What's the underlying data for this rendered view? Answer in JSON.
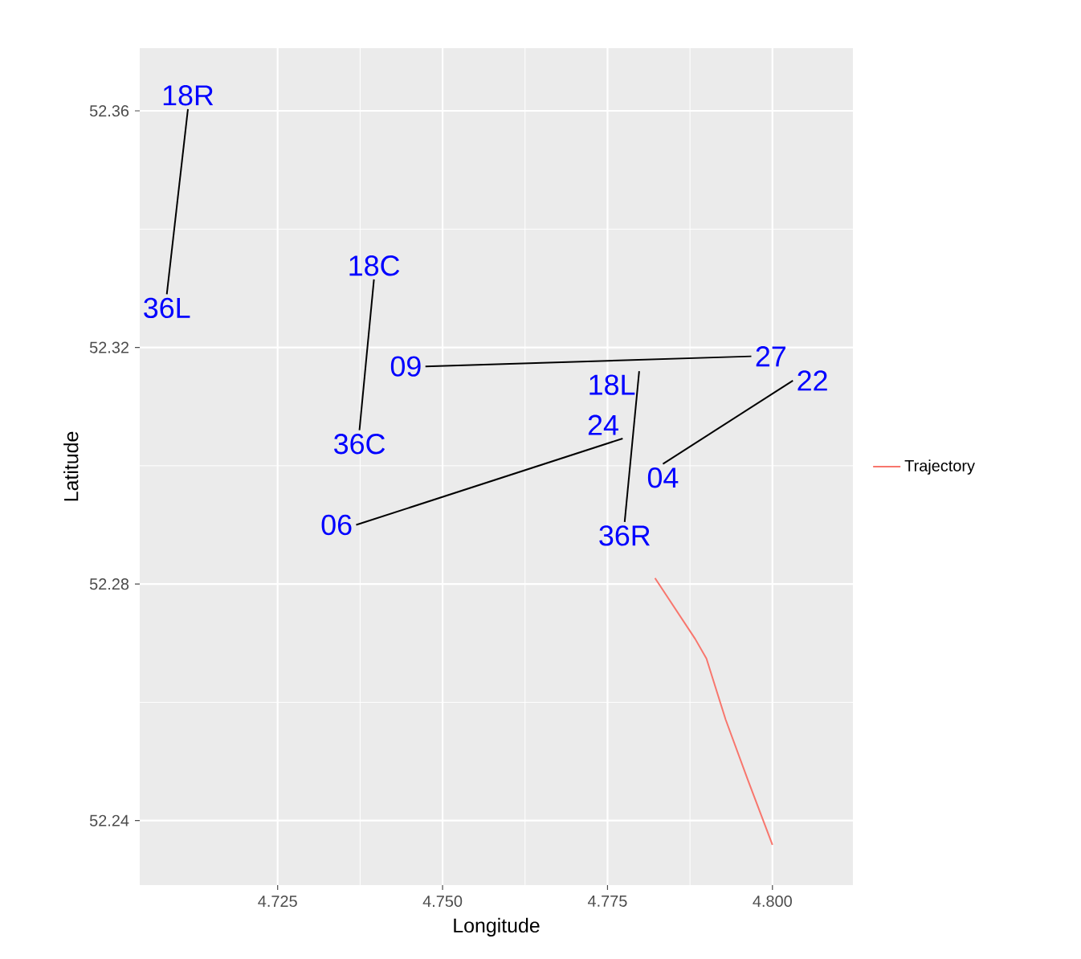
{
  "chart_data": {
    "type": "line",
    "xlabel": "Longitude",
    "ylabel": "Latitude",
    "xlim": [
      4.7041,
      4.8122
    ],
    "ylim": [
      52.2291,
      52.3706
    ],
    "xticks": [
      4.725,
      {
        "value": 4.75,
        "label": "4.750"
      },
      4.775,
      {
        "value": 4.8,
        "label": "4.800"
      }
    ],
    "yticks": [
      52.24,
      52.28,
      52.32,
      52.36
    ],
    "grid": true,
    "legend": "right",
    "series": [
      {
        "color": "#000000",
        "x": [
          4.7114,
          4.7082
        ],
        "values": [
          52.3603,
          52.329
        ]
      },
      {
        "color": "#000000",
        "x": [
          4.7396,
          4.7374
        ],
        "values": [
          52.3315,
          52.306
        ]
      },
      {
        "color": "#000000",
        "x": [
          4.7474,
          4.7968
        ],
        "values": [
          52.3168,
          52.3185
        ]
      },
      {
        "color": "#000000",
        "x": [
          4.7369,
          4.7773
        ],
        "values": [
          52.29,
          52.3046
        ]
      },
      {
        "color": "#000000",
        "x": [
          4.7798,
          4.7776
        ],
        "values": [
          52.316,
          52.2905
        ]
      },
      {
        "color": "#000000",
        "x": [
          4.7834,
          4.8031
        ],
        "values": [
          52.3003,
          52.3144
        ]
      },
      {
        "name": "Trajectory",
        "color": "#f8766d",
        "x": [
          4.7822,
          4.7883,
          4.79,
          4.7929,
          4.7963,
          4.8
        ],
        "values": [
          52.281,
          52.2707,
          52.2674,
          52.2571,
          52.2468,
          52.2359
        ]
      }
    ],
    "annotations": [
      {
        "text": "18R",
        "x": 4.7114,
        "y": 52.3603
      },
      {
        "text": "36L",
        "x": 4.7082,
        "y": 52.329
      },
      {
        "text": "18C",
        "x": 4.7396,
        "y": 52.3315
      },
      {
        "text": "36C",
        "x": 4.7374,
        "y": 52.306
      },
      {
        "text": "09",
        "x": 4.7474,
        "y": 52.3168
      },
      {
        "text": "27",
        "x": 4.7968,
        "y": 52.3185
      },
      {
        "text": "18L",
        "x": 4.7798,
        "y": 52.316
      },
      {
        "text": "24",
        "x": 4.7773,
        "y": 52.3046
      },
      {
        "text": "04",
        "x": 4.7834,
        "y": 52.3003
      },
      {
        "text": "22",
        "x": 4.8031,
        "y": 52.3144
      },
      {
        "text": "36R",
        "x": 4.7776,
        "y": 52.2905
      },
      {
        "text": "06",
        "x": 4.7369,
        "y": 52.29
      }
    ]
  }
}
